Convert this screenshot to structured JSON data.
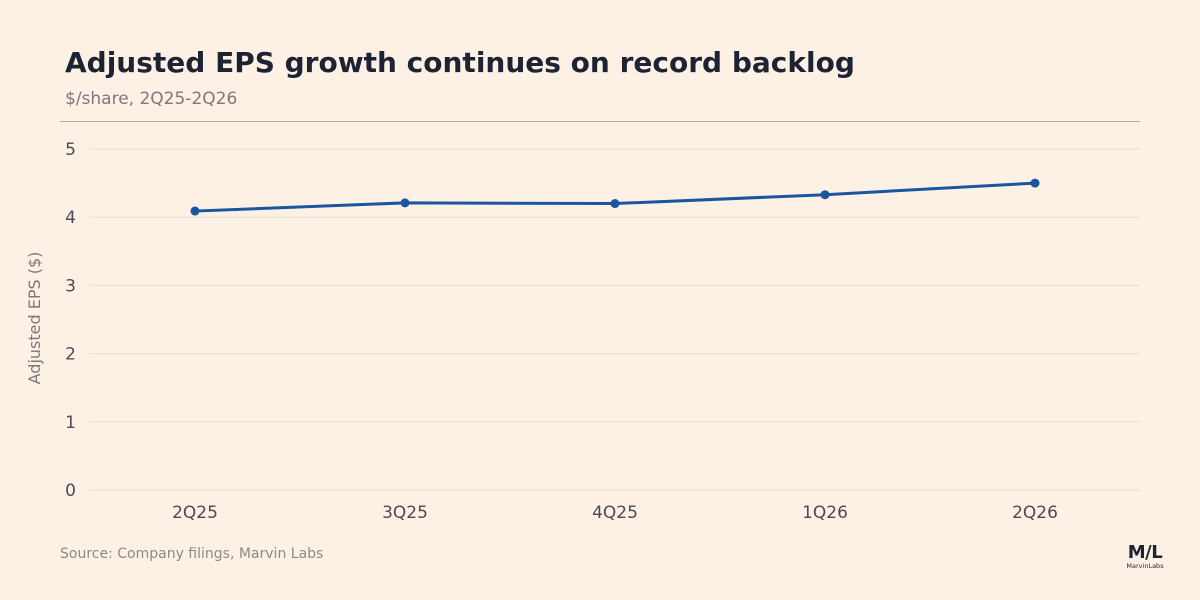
{
  "header": {
    "title": "Adjusted EPS growth continues on record backlog",
    "subtitle": "$/share, 2Q25-2Q26"
  },
  "footer": {
    "source": "Source: Company filings, Marvin Labs"
  },
  "logo": {
    "mark": "M/L",
    "text": "MarvinLabs"
  },
  "colors": {
    "background": "#fdf1e6",
    "line": "#1a56a0",
    "grid": "#e8dccf",
    "title": "#1c2333"
  },
  "chart_data": {
    "type": "line",
    "title": "Adjusted EPS growth continues on record backlog",
    "subtitle": "$/share, 2Q25-2Q26",
    "xlabel": "",
    "ylabel": "Adjusted EPS ($)",
    "categories": [
      "2Q25",
      "3Q25",
      "4Q25",
      "1Q26",
      "2Q26"
    ],
    "series": [
      {
        "values": [
          4.09,
          4.21,
          4.2,
          4.33,
          4.5
        ]
      }
    ],
    "ylim": [
      0,
      5
    ],
    "yticks": [
      0,
      1,
      2,
      3,
      4,
      5
    ],
    "grid": true,
    "legend": "none"
  }
}
